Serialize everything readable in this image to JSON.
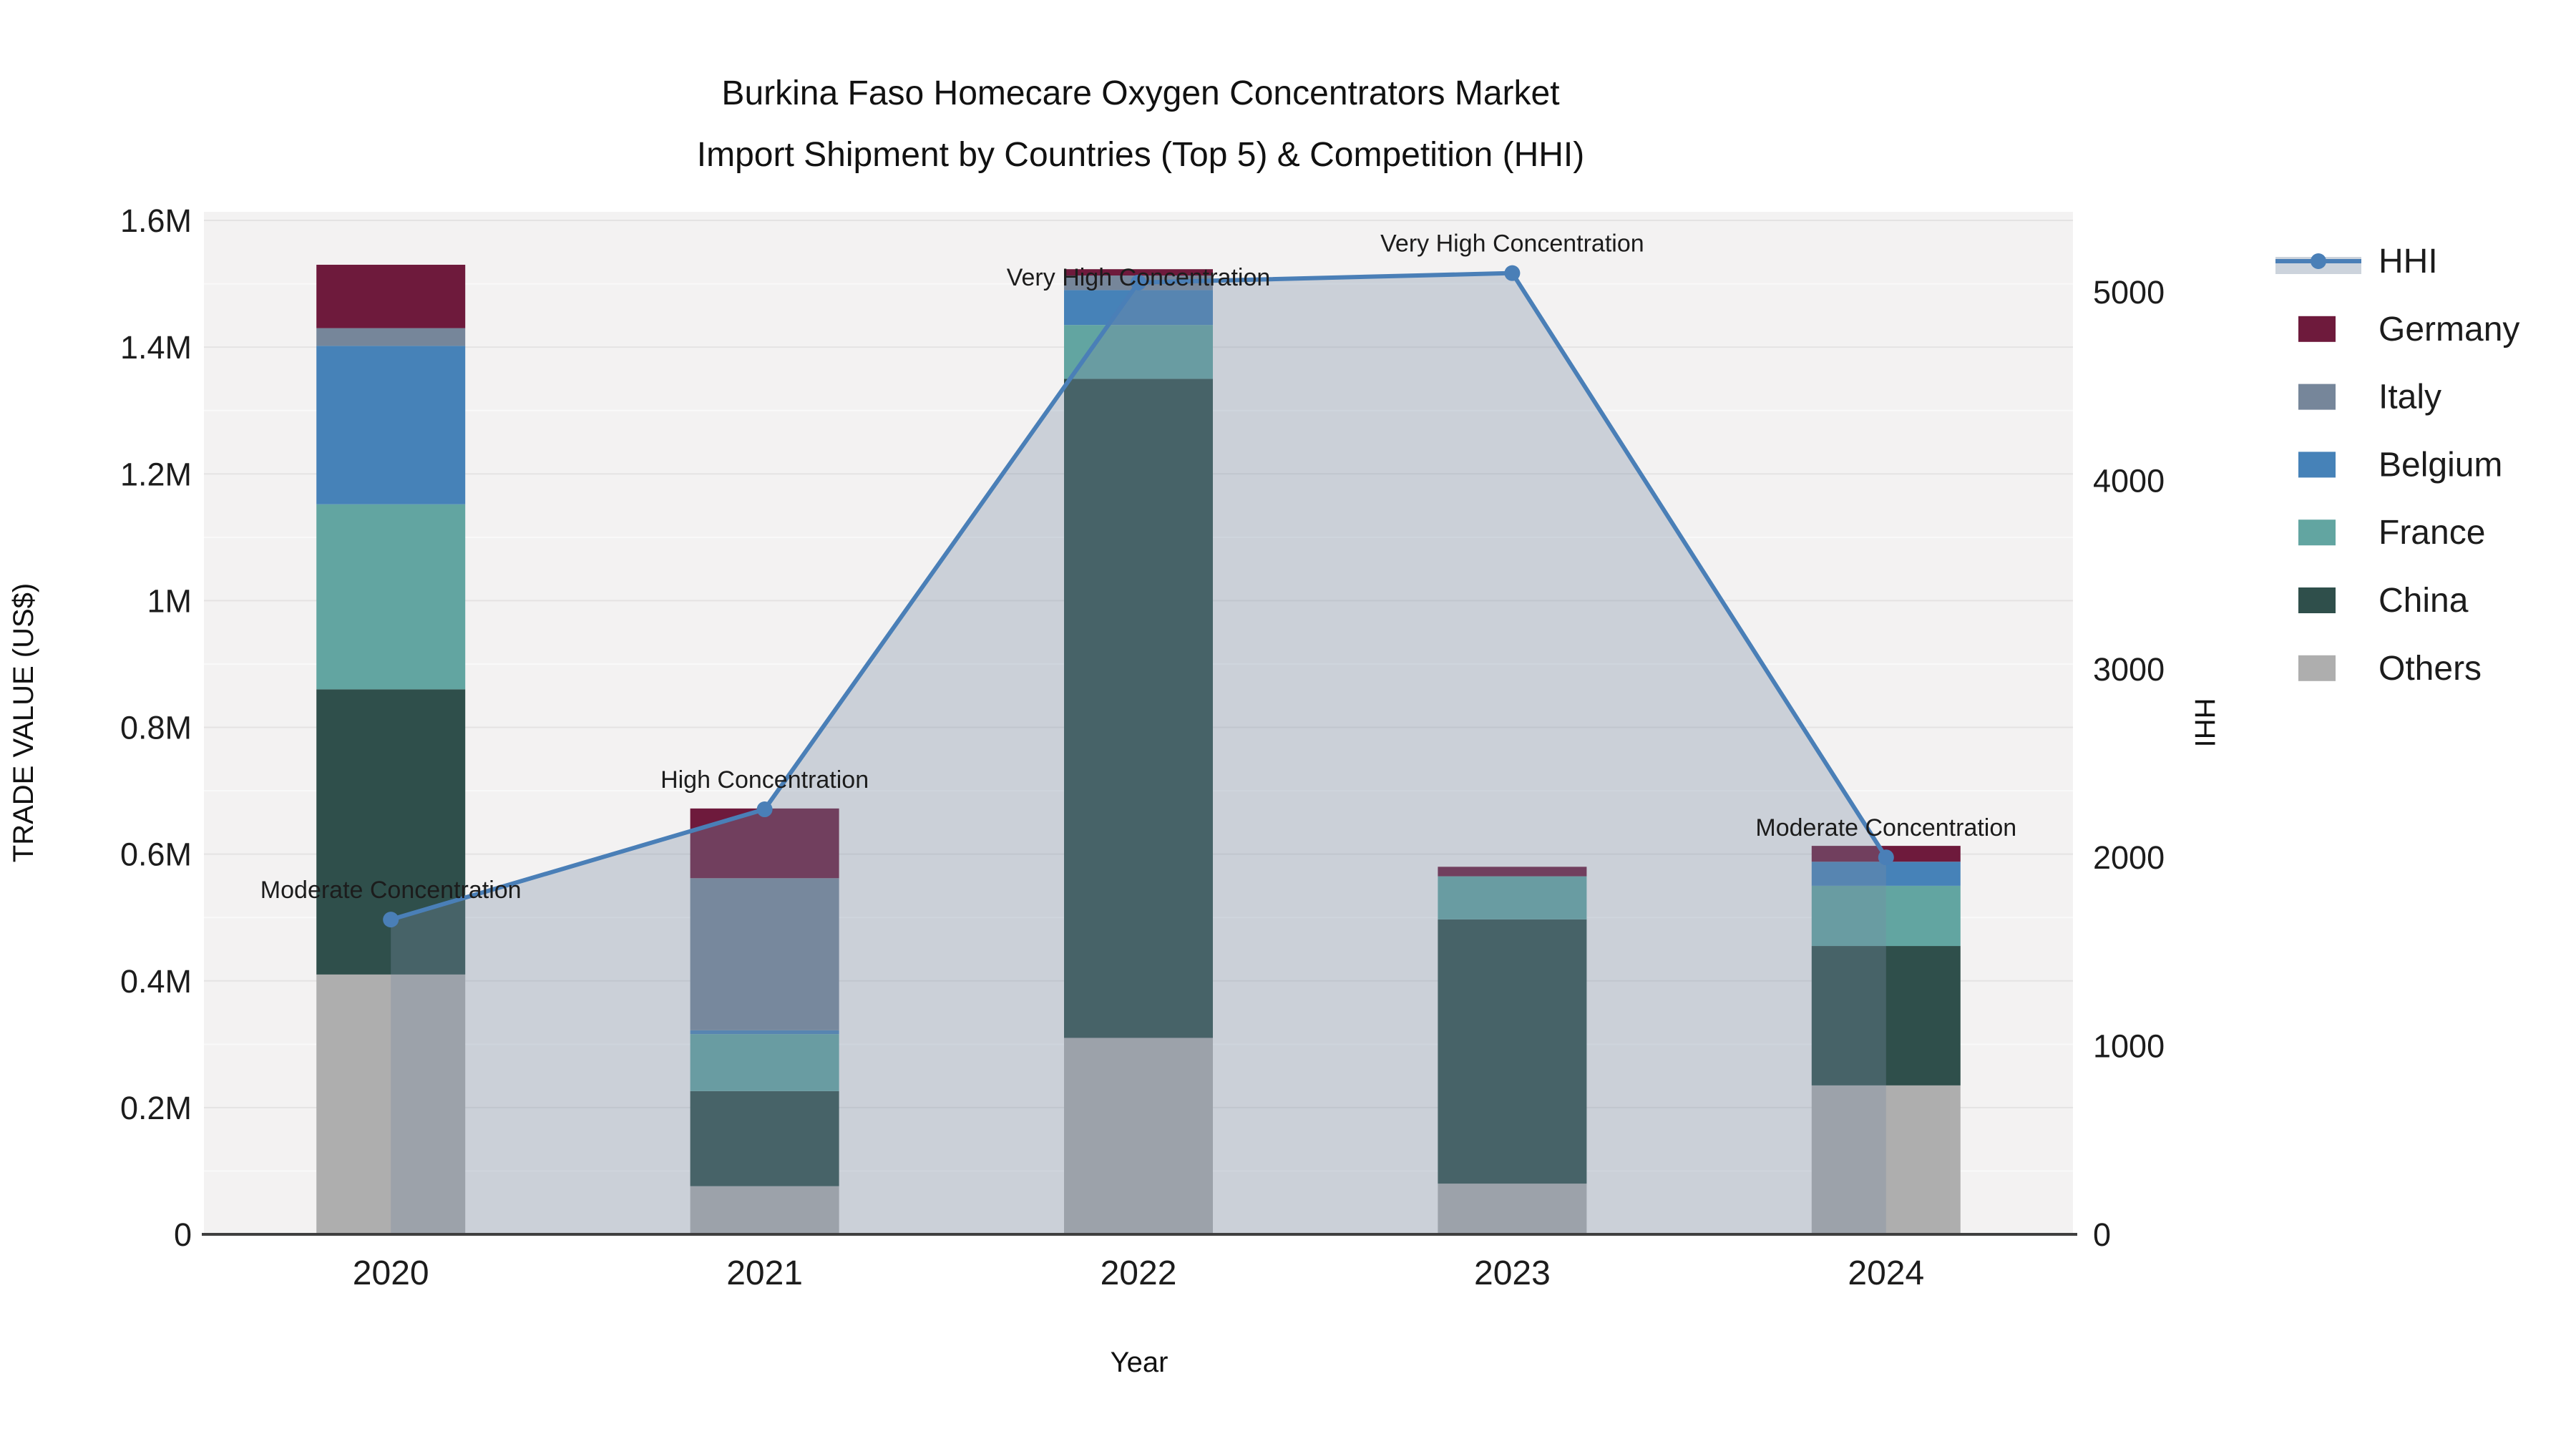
{
  "chart_data": {
    "type": "bar",
    "stacked": true,
    "secondary_line": "HHI",
    "title": [
      "Burkina Faso Homecare Oxygen Concentrators Market",
      "Import Shipment by Countries (Top 5) & Competition (HHI)"
    ],
    "xlabel": "Year",
    "ylabel_left": "TRADE VALUE (US$)",
    "ylabel_right": "HHI",
    "categories": [
      "2020",
      "2021",
      "2022",
      "2023",
      "2024"
    ],
    "series": [
      {
        "name": "Others",
        "color": "#aeaeae",
        "values": [
          410000,
          76000,
          310000,
          80000,
          235000
        ]
      },
      {
        "name": "China",
        "color": "#2f4f4b",
        "values": [
          450000,
          150000,
          1040000,
          417000,
          220000
        ]
      },
      {
        "name": "France",
        "color": "#62a5a1",
        "values": [
          292000,
          90000,
          85000,
          68000,
          95000
        ]
      },
      {
        "name": "Belgium",
        "color": "#4682b8",
        "values": [
          250000,
          6000,
          55000,
          0,
          38000
        ]
      },
      {
        "name": "Italy",
        "color": "#76869a",
        "values": [
          28000,
          240000,
          23000,
          0,
          0
        ]
      },
      {
        "name": "Germany",
        "color": "#6e1a3c",
        "values": [
          100000,
          110000,
          10000,
          15000,
          25000
        ]
      }
    ],
    "line_series": {
      "name": "HHI",
      "color": "#4a7fb7",
      "area_color": "rgba(122,139,163,0.33)",
      "values": [
        1670,
        2255,
        5050,
        5100,
        2000
      ]
    },
    "annotations": [
      "Moderate Concentration",
      "High Concentration",
      "Very High Concentration",
      "Very High Concentration",
      "Moderate Concentration"
    ],
    "y_left_ticks": [
      {
        "value": 0,
        "label": "0"
      },
      {
        "value": 200000,
        "label": "0.2M"
      },
      {
        "value": 400000,
        "label": "0.4M"
      },
      {
        "value": 600000,
        "label": "0.6M"
      },
      {
        "value": 800000,
        "label": "0.8M"
      },
      {
        "value": 1000000,
        "label": "1M"
      },
      {
        "value": 1200000,
        "label": "1.2M"
      },
      {
        "value": 1400000,
        "label": "1.4M"
      },
      {
        "value": 1600000,
        "label": "1.6M"
      }
    ],
    "y_right_ticks": [
      {
        "value": 0,
        "label": "0"
      },
      {
        "value": 1000,
        "label": "1000"
      },
      {
        "value": 2000,
        "label": "2000"
      },
      {
        "value": 3000,
        "label": "3000"
      },
      {
        "value": 4000,
        "label": "4000"
      },
      {
        "value": 5000,
        "label": "5000"
      }
    ],
    "y_left_range": [
      0,
      1614000
    ],
    "y_right_range": [
      0,
      5425
    ],
    "legend_order": [
      "HHI",
      "Germany",
      "Italy",
      "Belgium",
      "France",
      "China",
      "Others"
    ],
    "grid": true,
    "legend_position": "right",
    "plot_bg_color": "#f3f2f2"
  }
}
